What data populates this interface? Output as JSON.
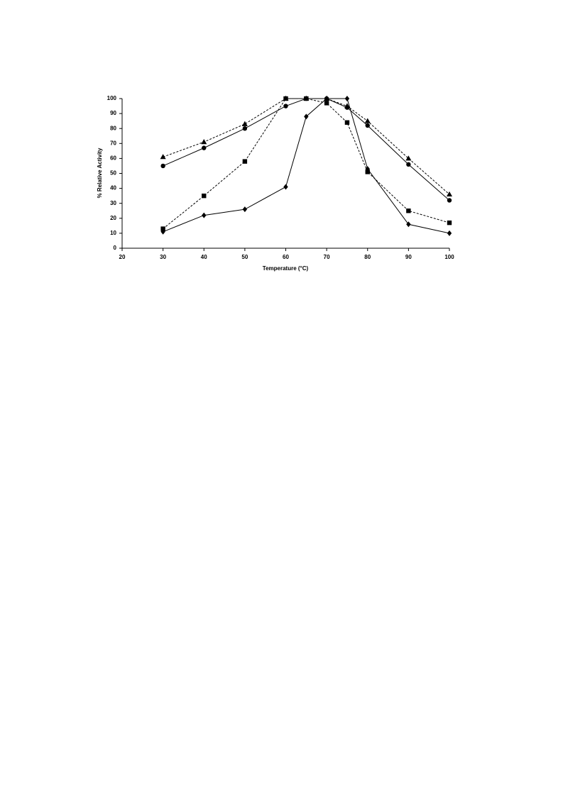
{
  "chart_data": {
    "type": "line",
    "x_label": "Temperature (°C)",
    "y_label": "% Relative Activity",
    "x": [
      30,
      40,
      50,
      60,
      65,
      70,
      75,
      80,
      90,
      100
    ],
    "series": [
      {
        "marker": "triangle",
        "dashed": true,
        "color": "#000000",
        "values": [
          61,
          71,
          83,
          100,
          100,
          100,
          95,
          85,
          60,
          36
        ]
      },
      {
        "marker": "circle",
        "dashed": false,
        "color": "#000000",
        "values": [
          55,
          67,
          80,
          95,
          100,
          100,
          94,
          82,
          56,
          32
        ]
      },
      {
        "marker": "square",
        "dashed": true,
        "color": "#000000",
        "values": [
          13,
          35,
          58,
          100,
          100,
          97,
          84,
          51,
          25,
          17
        ]
      },
      {
        "marker": "diamond",
        "dashed": false,
        "color": "#000000",
        "values": [
          11,
          22,
          26,
          41,
          88,
          100,
          100,
          53,
          16,
          10
        ]
      }
    ],
    "xlim": [
      20,
      100
    ],
    "xticks": [
      20,
      30,
      40,
      50,
      60,
      70,
      80,
      90,
      100
    ],
    "ylim": [
      0,
      100
    ],
    "yticks": [
      0,
      10,
      20,
      30,
      40,
      50,
      60,
      70,
      80,
      90,
      100
    ],
    "grid": false
  }
}
